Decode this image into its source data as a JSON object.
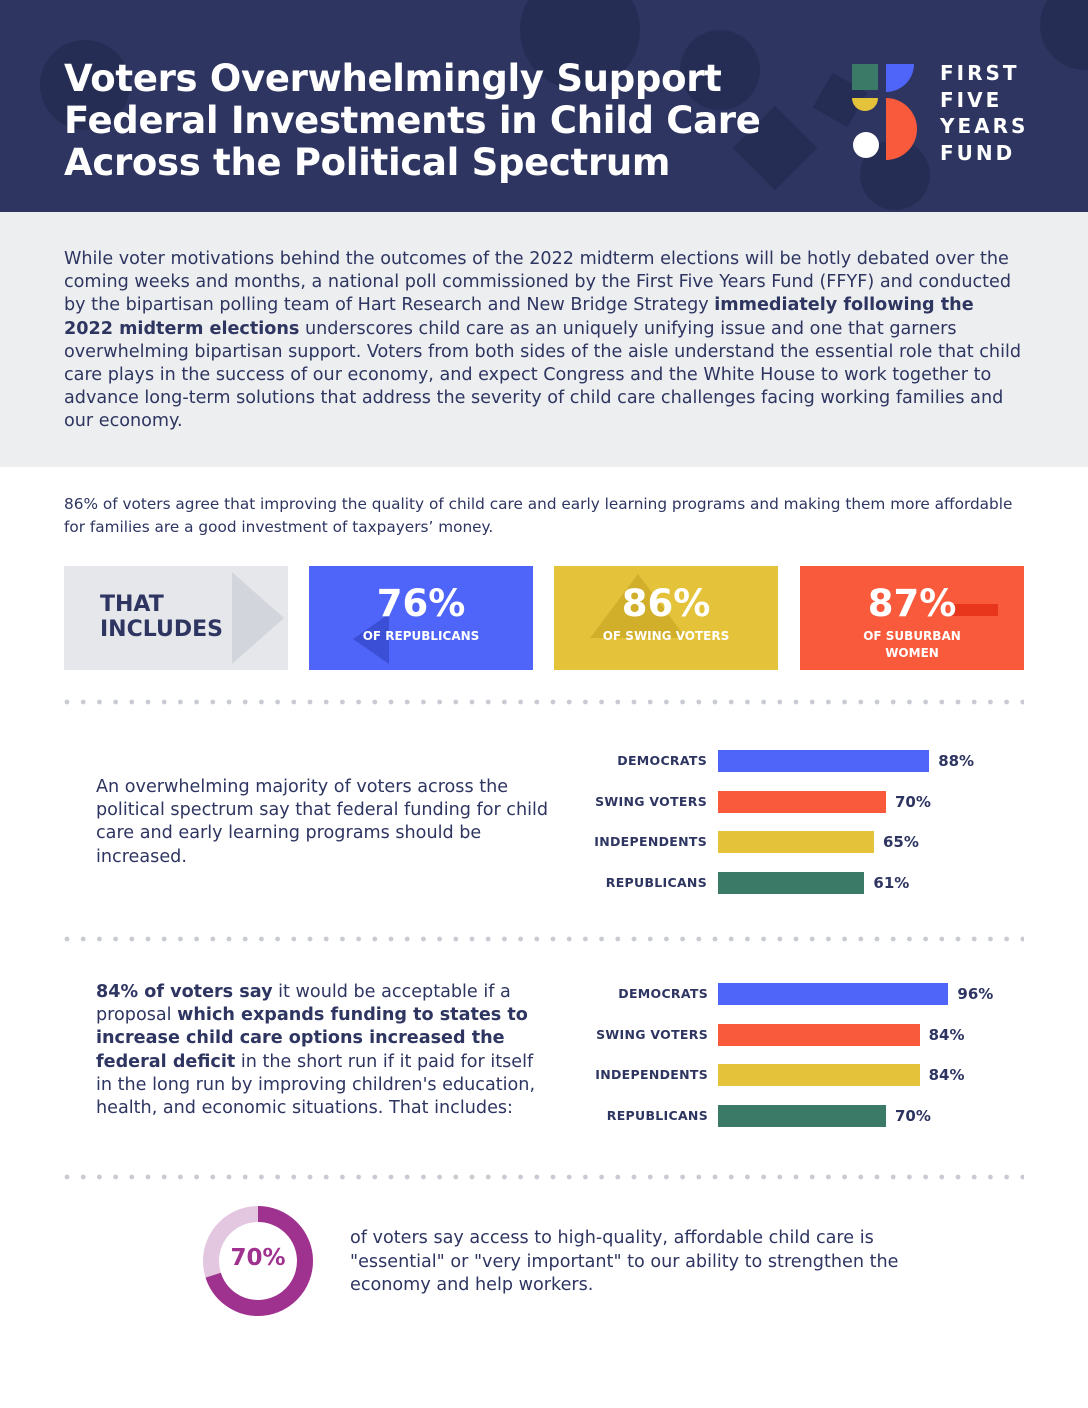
{
  "header": {
    "title": "Voters Overwhelmingly Support Federal Investments in Child Care Across the Political Spectrum",
    "logo_lines": [
      "FIRST",
      "FIVE",
      "YEARS",
      "FUND"
    ]
  },
  "intro": {
    "text_before_bold": "While voter motivations behind the outcomes of the 2022 midterm elections will be hotly debated over the coming weeks and months, a national poll commissioned by the First Five Years Fund (FFYF) and conducted by the bipartisan polling team of Hart Research and New Bridge Strategy ",
    "bold": "immediately following the 2022 midterm elections",
    "text_after_bold": " underscores child care as an uniquely unifying issue and one that garners overwhelming bipartisan support. Voters from both sides of the aisle understand the essential role that child care plays in the success of our economy, and expect Congress and the White House to work together to advance long-term solutions that address the severity of child care challenges facing working families and our economy."
  },
  "lead": "86% of voters agree that improving the quality of child care and early learning programs and making them more affordable for families are a good investment of taxpayers’ money.",
  "stats": {
    "includes_label_line1": "THAT",
    "includes_label_line2": "INCLUDES",
    "items": [
      {
        "value": "76%",
        "label": "OF REPUBLICANS",
        "color": "#4f64f8"
      },
      {
        "value": "86%",
        "label": "OF SWING VOTERS",
        "color": "#e4c33b"
      },
      {
        "value": "87%",
        "label_line1": "OF SUBURBAN",
        "label_line2": "WOMEN",
        "color": "#fa5a3c"
      }
    ]
  },
  "section1": {
    "text": "An overwhelming majority of voters across the political spectrum say that federal funding for child care and early learning programs should be increased."
  },
  "section2": {
    "bold1": "84% of voters say",
    "text1": " it would be acceptable if a proposal ",
    "bold2": "which expands funding to states to increase child care options increased the federal deficit",
    "text2": " in the short run if it paid for itself in the long run by improving children's education, health, and economic situations. That includes:"
  },
  "chart_data": [
    {
      "type": "bar",
      "orientation": "horizontal",
      "categories": [
        "DEMOCRATS",
        "SWING VOTERS",
        "INDEPENDENTS",
        "REPUBLICANS"
      ],
      "values": [
        88,
        70,
        65,
        61
      ],
      "value_labels": [
        "88%",
        "70%",
        "65%",
        "61%"
      ],
      "colors": [
        "#4f64f8",
        "#fa5a3c",
        "#e4c33b",
        "#3a7a66"
      ],
      "xlim": [
        0,
        100
      ],
      "grid": false
    },
    {
      "type": "bar",
      "orientation": "horizontal",
      "categories": [
        "DEMOCRATS",
        "SWING VOTERS",
        "INDEPENDENTS",
        "REPUBLICANS"
      ],
      "values": [
        96,
        84,
        84,
        70
      ],
      "value_labels": [
        "96%",
        "84%",
        "84%",
        "70%"
      ],
      "colors": [
        "#4f64f8",
        "#fa5a3c",
        "#e4c33b",
        "#3a7a66"
      ],
      "xlim": [
        0,
        100
      ],
      "grid": false
    },
    {
      "type": "pie",
      "variant": "donut",
      "values": [
        70,
        30
      ],
      "center_label": "70%",
      "colors": [
        "#a0328f",
        "#e3c6e0"
      ]
    }
  ],
  "donut_text": "of voters say access to high-quality, affordable child care is \"essential\" or \"very important\" to our ability to strengthen the economy and help workers."
}
